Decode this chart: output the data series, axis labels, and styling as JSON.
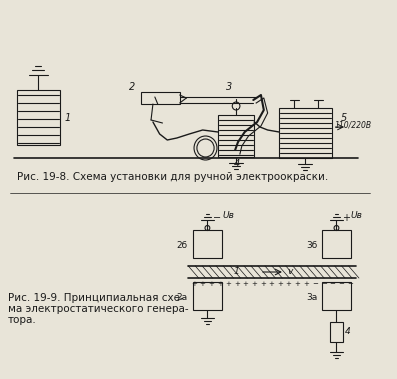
{
  "fig_width": 3.97,
  "fig_height": 3.79,
  "dpi": 100,
  "bg_color": "#e8e4d8",
  "caption1": "Рис. 19-8. Схема установки для ручной электроокраски.",
  "caption2_line1": "Рис. 19-9. Принципиальная схе-",
  "caption2_line2": "ма электростатического генера-",
  "caption2_line3": "тора.",
  "caption_fontsize": 7.5,
  "line_color": "#1a1a1a",
  "text_color": "#1a1a1a"
}
